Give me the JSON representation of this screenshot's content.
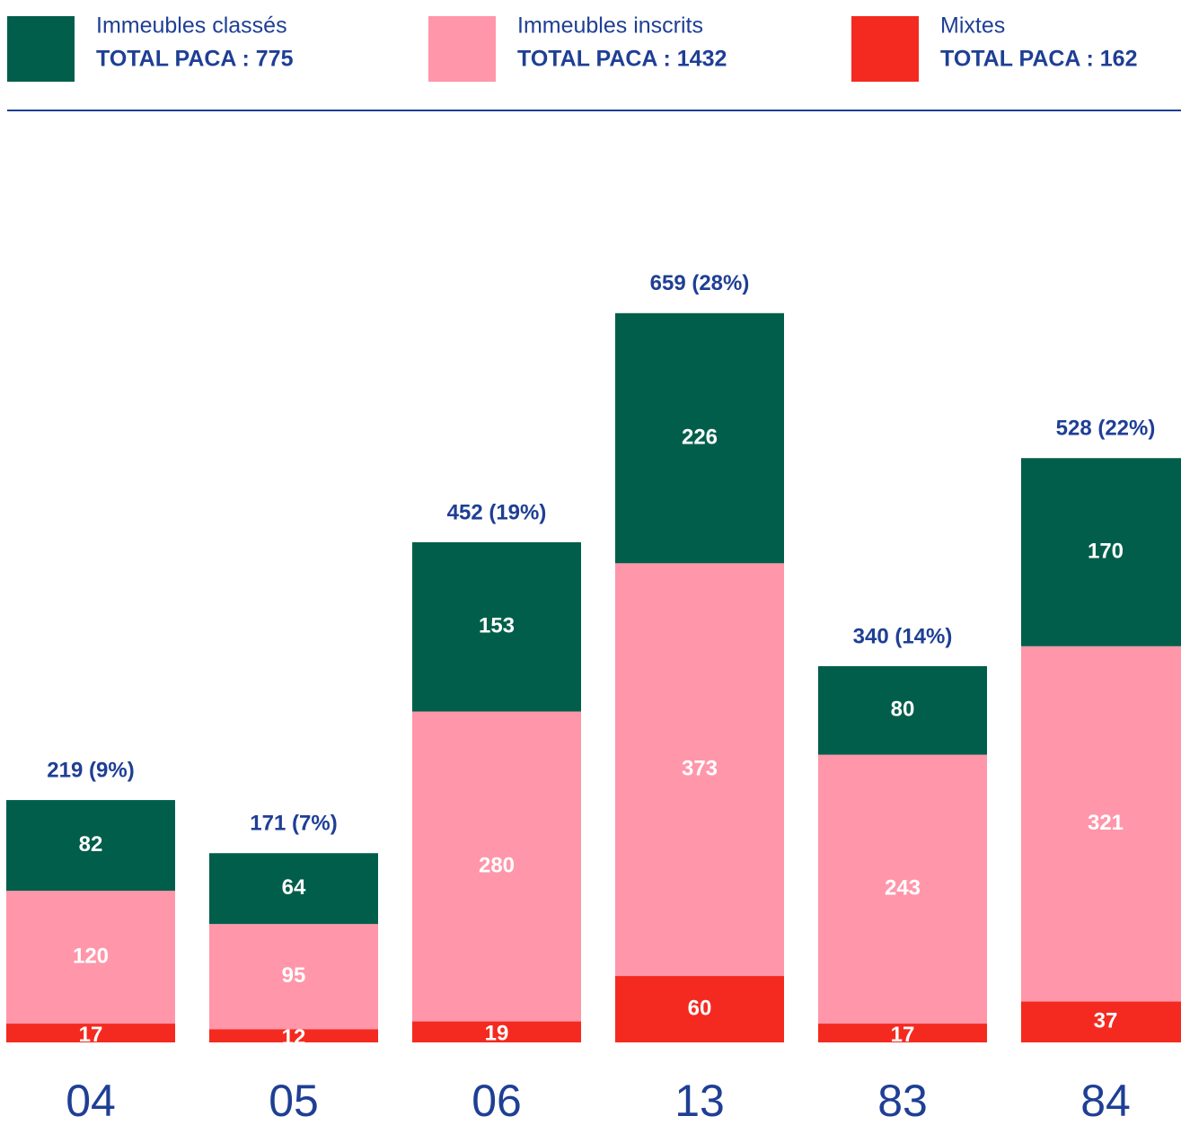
{
  "chart_data": {
    "type": "stacked_bar",
    "categories": [
      "04",
      "05",
      "06",
      "13",
      "83",
      "84"
    ],
    "series": [
      {
        "name": "Mixtes",
        "total_label": "TOTAL PACA : 162",
        "color": "#f42a20",
        "values": [
          17,
          12,
          19,
          60,
          17,
          37
        ]
      },
      {
        "name": "Immeubles inscrits",
        "total_label": "TOTAL PACA : 1432",
        "color": "#ff96aa",
        "values": [
          120,
          95,
          280,
          373,
          243,
          321
        ]
      },
      {
        "name": "Immeubles classés",
        "total_label": "TOTAL PACA : 775",
        "color": "#005e4b",
        "values": [
          82,
          64,
          153,
          226,
          80,
          170
        ]
      }
    ],
    "legend_order": [
      2,
      1,
      0
    ],
    "total_labels": [
      "219 (9%)",
      "171 (7%)",
      "452 (19%)",
      "659 (28%)",
      "340 (14%)",
      "528 (22%)"
    ]
  }
}
